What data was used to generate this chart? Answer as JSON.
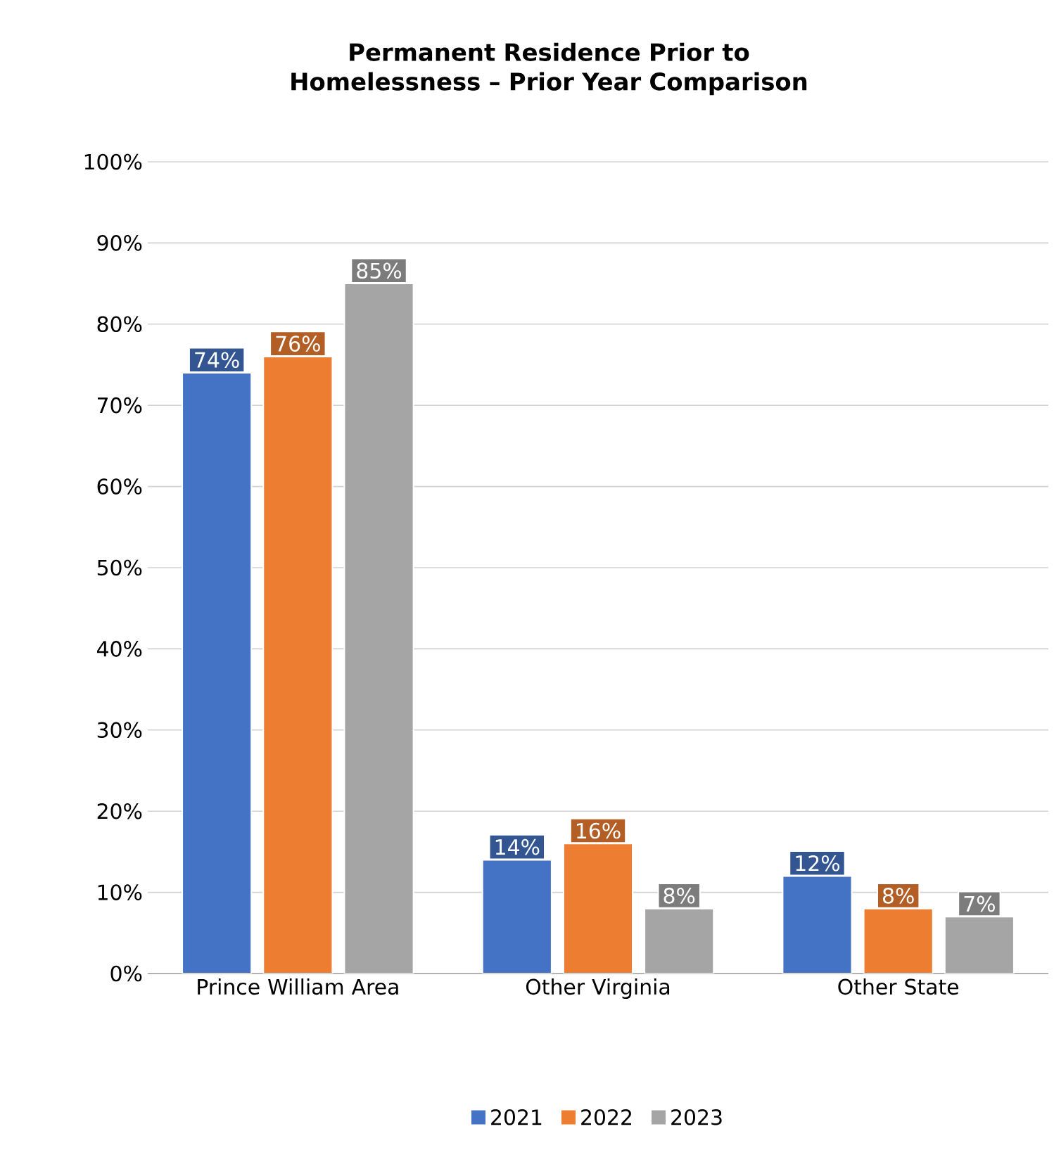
{
  "chart_data": {
    "type": "bar",
    "title": "Permanent Residence Prior to Homelessness – Prior Year Comparison",
    "categories": [
      "Prince William Area",
      "Other Virginia",
      "Other State"
    ],
    "series": [
      {
        "name": "2021",
        "color": "#4472c4",
        "values": [
          74,
          14,
          12
        ],
        "value_labels": [
          "74%",
          "14%",
          "12%"
        ]
      },
      {
        "name": "2022",
        "color": "#ed7d31",
        "values": [
          76,
          16,
          8
        ],
        "value_labels": [
          "76%",
          "16%",
          "8%"
        ]
      },
      {
        "name": "2023",
        "color": "#a5a5a5",
        "values": [
          85,
          8,
          7
        ],
        "value_labels": [
          "85%",
          "8%",
          "7%"
        ]
      }
    ],
    "ylim": [
      0,
      100
    ],
    "yticks": [
      {
        "value": 0,
        "label": "0%"
      },
      {
        "value": 10,
        "label": "10%"
      },
      {
        "value": 20,
        "label": "20%"
      },
      {
        "value": 30,
        "label": "30%"
      },
      {
        "value": 40,
        "label": "40%"
      },
      {
        "value": 50,
        "label": "50%"
      },
      {
        "value": 60,
        "label": "60%"
      },
      {
        "value": 70,
        "label": "70%"
      },
      {
        "value": 80,
        "label": "80%"
      },
      {
        "value": 90,
        "label": "90%"
      },
      {
        "value": 100,
        "label": "100%"
      }
    ],
    "grid": "y",
    "legend": "bottom"
  }
}
